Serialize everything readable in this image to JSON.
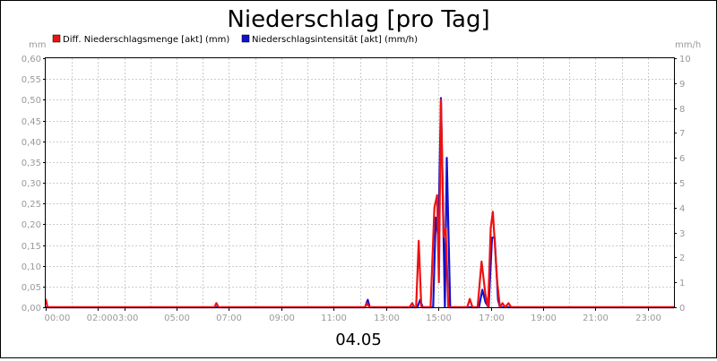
{
  "chart_data": {
    "type": "line",
    "title": "Niederschlag [pro Tag]",
    "date_label": "04.05",
    "y_left_unit": "mm",
    "y_right_unit": "mm/h",
    "y_left_range": [
      0,
      0.6
    ],
    "y_left_ticks": [
      "0,00",
      "0,05",
      "0,10",
      "0,15",
      "0,20",
      "0,25",
      "0,30",
      "0,35",
      "0,40",
      "0,45",
      "0,50",
      "0,55",
      "0,60"
    ],
    "y_right_range": [
      0,
      10
    ],
    "y_right_ticks": [
      "0",
      "1",
      "2",
      "3",
      "4",
      "5",
      "6",
      "7",
      "8",
      "9",
      "10"
    ],
    "x_range_hours": [
      0,
      24
    ],
    "x_ticks": [
      {
        "hour": 0,
        "label": "00:00"
      },
      {
        "hour": 2,
        "label": "02:00"
      },
      {
        "hour": 3,
        "label": "03:00"
      },
      {
        "hour": 5,
        "label": "05:00"
      },
      {
        "hour": 7,
        "label": "07:00"
      },
      {
        "hour": 9,
        "label": "09:00"
      },
      {
        "hour": 11,
        "label": "11:00"
      },
      {
        "hour": 13,
        "label": "13:00"
      },
      {
        "hour": 15,
        "label": "15:00"
      },
      {
        "hour": 17,
        "label": "17:00"
      },
      {
        "hour": 19,
        "label": "19:00"
      },
      {
        "hour": 21,
        "label": "21:00"
      },
      {
        "hour": 23,
        "label": "23:00"
      }
    ],
    "grid": true,
    "legend_position": "top-left",
    "series": [
      {
        "name": "Diff. Niederschlagsmenge [akt] (mm)",
        "color": "#ee1111",
        "axis": "left",
        "points": [
          [
            0.0,
            0.02
          ],
          [
            0.07,
            0.0
          ],
          [
            6.45,
            0.0
          ],
          [
            6.52,
            0.01
          ],
          [
            6.6,
            0.0
          ],
          [
            12.2,
            0.0
          ],
          [
            12.28,
            0.01
          ],
          [
            12.36,
            0.0
          ],
          [
            13.9,
            0.0
          ],
          [
            14.0,
            0.01
          ],
          [
            14.08,
            0.0
          ],
          [
            14.15,
            0.0
          ],
          [
            14.25,
            0.16
          ],
          [
            14.35,
            0.0
          ],
          [
            14.7,
            0.0
          ],
          [
            14.85,
            0.24
          ],
          [
            14.95,
            0.27
          ],
          [
            15.02,
            0.06
          ],
          [
            15.1,
            0.5
          ],
          [
            15.2,
            0.17
          ],
          [
            15.28,
            0.19
          ],
          [
            15.38,
            0.0
          ],
          [
            16.1,
            0.0
          ],
          [
            16.2,
            0.02
          ],
          [
            16.3,
            0.0
          ],
          [
            16.5,
            0.0
          ],
          [
            16.65,
            0.11
          ],
          [
            16.8,
            0.03
          ],
          [
            16.9,
            0.0
          ],
          [
            17.0,
            0.19
          ],
          [
            17.08,
            0.23
          ],
          [
            17.25,
            0.06
          ],
          [
            17.35,
            0.0
          ],
          [
            17.45,
            0.01
          ],
          [
            17.55,
            0.0
          ],
          [
            17.68,
            0.01
          ],
          [
            17.78,
            0.0
          ],
          [
            24.0,
            0.0
          ]
        ]
      },
      {
        "name": "Niederschlagsintensität [akt] (mm/h)",
        "color": "#1111cc",
        "axis": "right",
        "points": [
          [
            0.0,
            0.0
          ],
          [
            12.2,
            0.0
          ],
          [
            12.3,
            0.3
          ],
          [
            12.38,
            0.0
          ],
          [
            14.2,
            0.0
          ],
          [
            14.3,
            0.3
          ],
          [
            14.4,
            0.0
          ],
          [
            14.8,
            0.0
          ],
          [
            14.9,
            3.6
          ],
          [
            15.0,
            2.8
          ],
          [
            15.1,
            8.4
          ],
          [
            15.25,
            0.0
          ],
          [
            15.32,
            6.0
          ],
          [
            15.45,
            0.0
          ],
          [
            16.55,
            0.0
          ],
          [
            16.68,
            0.7
          ],
          [
            16.8,
            0.2
          ],
          [
            16.92,
            0.0
          ],
          [
            17.05,
            2.8
          ],
          [
            17.15,
            2.8
          ],
          [
            17.28,
            0.3
          ],
          [
            17.35,
            0.0
          ],
          [
            24.0,
            0.0
          ]
        ]
      }
    ]
  }
}
